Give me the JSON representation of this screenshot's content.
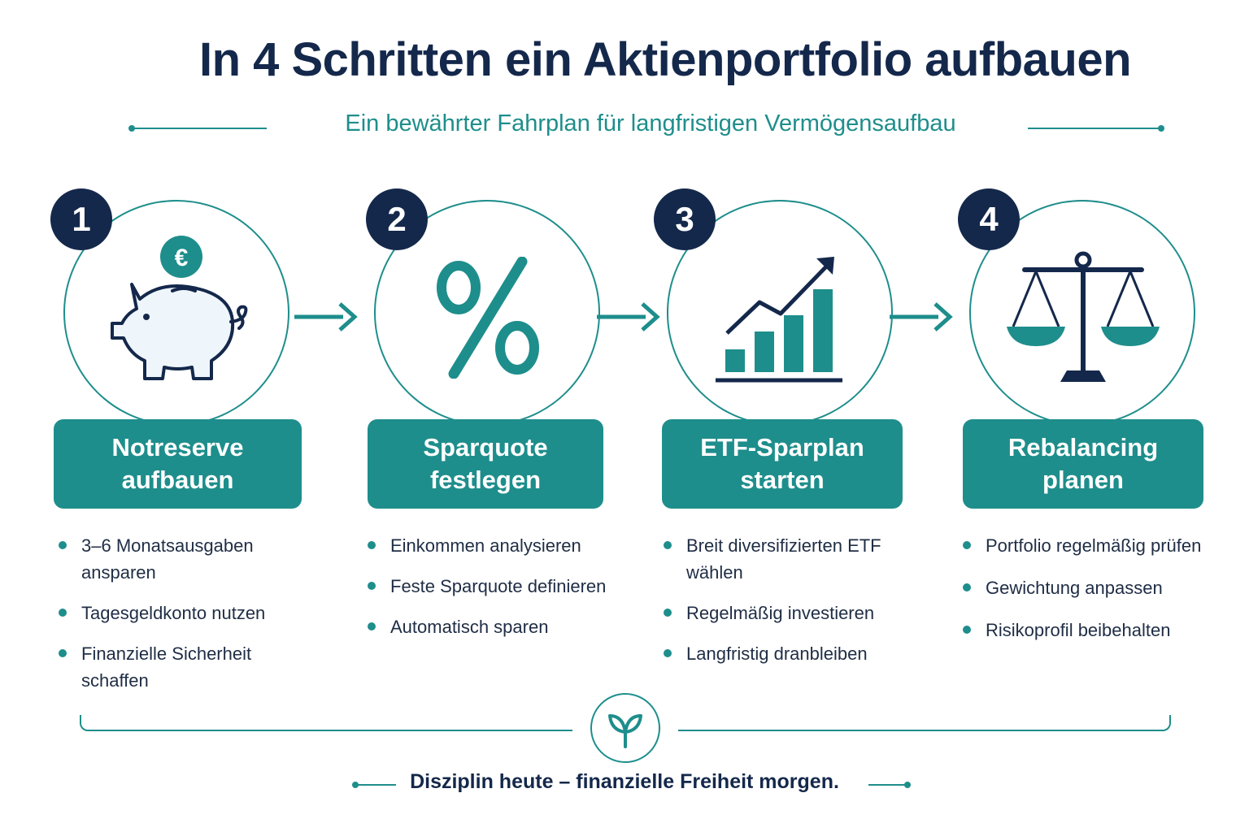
{
  "title": "In 4 Schritten ein Aktienportfolio aufbauen",
  "subtitle": "Ein bewährter Fahrplan für langfristigen Vermögensaufbau",
  "colors": {
    "navy": "#14284b",
    "teal": "#1e8e8c",
    "white": "#ffffff"
  },
  "steps": [
    {
      "number": "1",
      "icon": "piggy-bank-euro-icon",
      "title_line1": "Notreserve",
      "title_line2": "aufbauen",
      "bullets": [
        "3–6 Monatsausgaben ansparen",
        "Tagesgeldkonto nutzen",
        "Finanzielle Sicherheit schaffen"
      ]
    },
    {
      "number": "2",
      "icon": "percent-icon",
      "title_line1": "Sparquote",
      "title_line2": "festlegen",
      "bullets": [
        "Einkommen analysieren",
        "Feste Sparquote definieren",
        "Automatisch sparen"
      ]
    },
    {
      "number": "3",
      "icon": "growth-chart-icon",
      "title_line1": "ETF-Sparplan",
      "title_line2": "starten",
      "bullets": [
        "Breit diversifizierten ETF wählen",
        "Regelmäßig investieren",
        "Langfristig dranbleiben"
      ]
    },
    {
      "number": "4",
      "icon": "balance-scale-icon",
      "title_line1": "Rebalancing",
      "title_line2": "planen",
      "bullets": [
        "Portfolio regelmäßig prüfen",
        "Gewichtung anpassen",
        "Risikoprofil beibehalten"
      ]
    }
  ],
  "footer": "Disziplin heute – finanzielle Freiheit morgen.",
  "footer_icon": "sprout-icon"
}
